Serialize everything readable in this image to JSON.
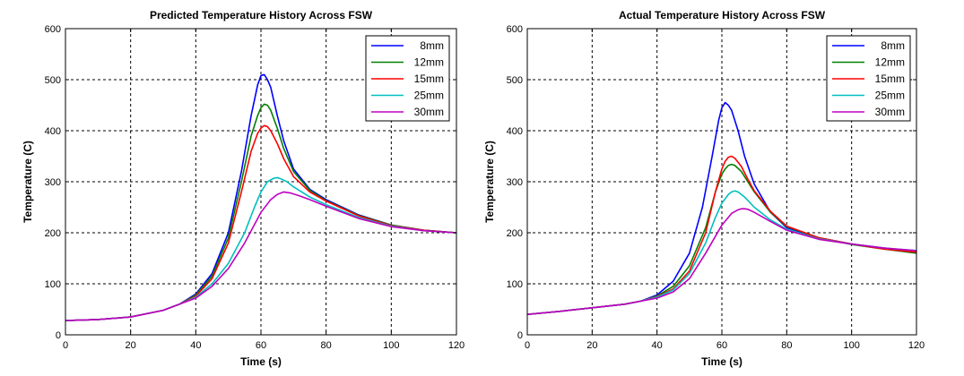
{
  "chart_data": [
    {
      "type": "line",
      "title": "Predicted Temperature History Across FSW",
      "xlabel": "Time (s)",
      "ylabel": "Temperature (C)",
      "xlim": [
        0,
        120
      ],
      "ylim": [
        0,
        600
      ],
      "xticks": [
        0,
        20,
        40,
        60,
        80,
        100,
        120
      ],
      "yticks": [
        0,
        100,
        200,
        300,
        400,
        500,
        600
      ],
      "grid": true,
      "legend_position": "top-right",
      "series": [
        {
          "name": "8mm",
          "color": "#0000ff",
          "x": [
            0,
            10,
            20,
            30,
            35,
            40,
            45,
            50,
            54,
            57,
            59,
            60,
            61,
            62,
            63,
            65,
            67,
            70,
            75,
            80,
            90,
            100,
            110,
            120
          ],
          "y": [
            28,
            30,
            35,
            48,
            60,
            80,
            120,
            200,
            320,
            430,
            490,
            508,
            510,
            500,
            485,
            430,
            380,
            325,
            285,
            265,
            235,
            215,
            205,
            200
          ]
        },
        {
          "name": "12mm",
          "color": "#008000",
          "x": [
            0,
            10,
            20,
            30,
            35,
            40,
            45,
            50,
            54,
            57,
            59,
            60,
            61,
            62,
            63,
            65,
            67,
            70,
            75,
            80,
            90,
            100,
            110,
            120
          ],
          "y": [
            28,
            30,
            35,
            48,
            60,
            78,
            115,
            190,
            300,
            390,
            430,
            445,
            452,
            450,
            440,
            405,
            365,
            320,
            283,
            263,
            234,
            215,
            205,
            200
          ]
        },
        {
          "name": "15mm",
          "color": "#ff0000",
          "x": [
            0,
            10,
            20,
            30,
            35,
            40,
            45,
            50,
            54,
            57,
            59,
            60,
            61,
            62,
            63,
            65,
            67,
            70,
            75,
            80,
            90,
            100,
            110,
            120
          ],
          "y": [
            28,
            30,
            35,
            48,
            60,
            76,
            110,
            180,
            280,
            360,
            395,
            405,
            410,
            408,
            400,
            375,
            345,
            310,
            280,
            262,
            233,
            214,
            205,
            200
          ]
        },
        {
          "name": "25mm",
          "color": "#00bfbf",
          "x": [
            0,
            10,
            20,
            30,
            35,
            40,
            45,
            50,
            55,
            58,
            60,
            62,
            64,
            65,
            66,
            68,
            70,
            75,
            80,
            90,
            100,
            110,
            120
          ],
          "y": [
            28,
            30,
            35,
            48,
            60,
            74,
            100,
            140,
            200,
            250,
            280,
            300,
            307,
            308,
            306,
            300,
            290,
            270,
            255,
            230,
            213,
            204,
            200
          ]
        },
        {
          "name": "30mm",
          "color": "#bf00bf",
          "x": [
            0,
            10,
            20,
            30,
            35,
            40,
            45,
            50,
            55,
            60,
            63,
            65,
            67,
            69,
            72,
            75,
            80,
            90,
            100,
            110,
            120
          ],
          "y": [
            28,
            30,
            35,
            48,
            60,
            72,
            95,
            130,
            180,
            240,
            265,
            275,
            280,
            278,
            272,
            265,
            252,
            228,
            212,
            204,
            200
          ]
        }
      ]
    },
    {
      "type": "line",
      "title": "Actual Temperature History Across FSW",
      "xlabel": "Time (s)",
      "ylabel": "Temperature (C)",
      "xlim": [
        0,
        120
      ],
      "ylim": [
        0,
        600
      ],
      "xticks": [
        0,
        20,
        40,
        60,
        80,
        100,
        120
      ],
      "yticks": [
        0,
        100,
        200,
        300,
        400,
        500,
        600
      ],
      "grid": true,
      "legend_position": "top-right",
      "series": [
        {
          "name": "8mm",
          "color": "#0000ff",
          "x": [
            0,
            10,
            20,
            30,
            35,
            40,
            45,
            50,
            54,
            57,
            59,
            60,
            61,
            62,
            63,
            65,
            67,
            70,
            75,
            80,
            90,
            100,
            110,
            120
          ],
          "y": [
            40,
            46,
            53,
            60,
            66,
            78,
            105,
            160,
            250,
            350,
            420,
            445,
            455,
            450,
            440,
            400,
            350,
            295,
            240,
            210,
            190,
            178,
            170,
            163
          ]
        },
        {
          "name": "12mm",
          "color": "#008000",
          "x": [
            0,
            10,
            20,
            30,
            35,
            40,
            45,
            50,
            55,
            58,
            60,
            61,
            62,
            63,
            64,
            66,
            68,
            70,
            75,
            80,
            90,
            100,
            110,
            120
          ],
          "y": [
            40,
            46,
            53,
            60,
            66,
            76,
            95,
            135,
            210,
            280,
            315,
            325,
            332,
            334,
            332,
            320,
            300,
            280,
            240,
            212,
            190,
            177,
            168,
            160
          ]
        },
        {
          "name": "15mm",
          "color": "#ff0000",
          "x": [
            0,
            10,
            20,
            30,
            35,
            40,
            45,
            50,
            55,
            58,
            60,
            61,
            62,
            63,
            64,
            66,
            68,
            70,
            75,
            80,
            90,
            100,
            110,
            120
          ],
          "y": [
            40,
            46,
            53,
            60,
            66,
            75,
            90,
            125,
            200,
            280,
            325,
            340,
            348,
            350,
            346,
            330,
            305,
            282,
            242,
            213,
            190,
            178,
            168,
            162
          ]
        },
        {
          "name": "25mm",
          "color": "#00bfbf",
          "x": [
            0,
            10,
            20,
            30,
            35,
            40,
            45,
            50,
            55,
            58,
            60,
            62,
            63,
            64,
            65,
            67,
            70,
            75,
            80,
            90,
            100,
            110,
            120
          ],
          "y": [
            40,
            46,
            53,
            60,
            66,
            74,
            88,
            120,
            180,
            230,
            258,
            275,
            280,
            282,
            280,
            270,
            250,
            225,
            207,
            188,
            178,
            170,
            165
          ]
        },
        {
          "name": "30mm",
          "color": "#bf00bf",
          "x": [
            0,
            10,
            20,
            30,
            35,
            40,
            45,
            50,
            55,
            60,
            63,
            65,
            66,
            67,
            68,
            70,
            75,
            80,
            90,
            100,
            110,
            120
          ],
          "y": [
            40,
            46,
            53,
            60,
            66,
            72,
            84,
            110,
            160,
            215,
            238,
            245,
            247,
            247,
            246,
            240,
            222,
            205,
            187,
            178,
            170,
            165
          ]
        }
      ]
    }
  ]
}
